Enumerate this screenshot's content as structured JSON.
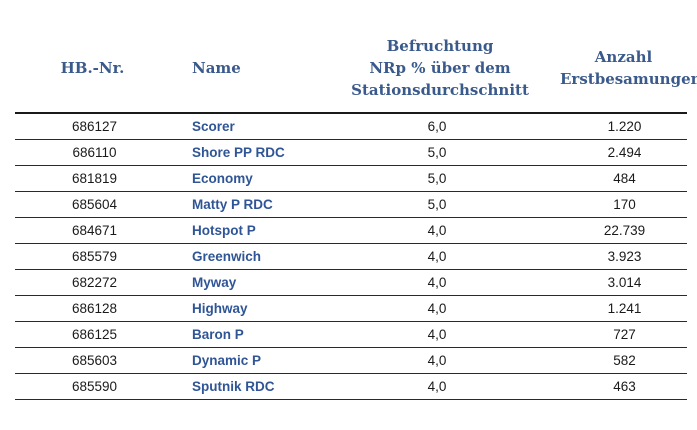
{
  "headers": {
    "nr": "HB.-Nr.",
    "name": "Name",
    "befruchtung": [
      "Befruchtung",
      "NRp % über dem",
      "Stationsdurchschnitt"
    ],
    "anzahl": [
      "Anzahl",
      "Erstbesamungen"
    ]
  },
  "rows": [
    {
      "nr": "686127",
      "name": "Scorer",
      "befruchtung": "6,0",
      "anzahl": "1.220"
    },
    {
      "nr": "686110",
      "name": "Shore PP RDC",
      "befruchtung": "5,0",
      "anzahl": "2.494"
    },
    {
      "nr": "681819",
      "name": "Economy",
      "befruchtung": "5,0",
      "anzahl": "484"
    },
    {
      "nr": "685604",
      "name": "Matty P RDC",
      "befruchtung": "5,0",
      "anzahl": "170"
    },
    {
      "nr": "684671",
      "name": "Hotspot P",
      "befruchtung": "4,0",
      "anzahl": "22.739"
    },
    {
      "nr": "685579",
      "name": "Greenwich",
      "befruchtung": "4,0",
      "anzahl": "3.923"
    },
    {
      "nr": "682272",
      "name": "Myway",
      "befruchtung": "4,0",
      "anzahl": "3.014"
    },
    {
      "nr": "686128",
      "name": "Highway",
      "befruchtung": "4,0",
      "anzahl": "1.241"
    },
    {
      "nr": "686125",
      "name": "Baron P",
      "befruchtung": "4,0",
      "anzahl": "727"
    },
    {
      "nr": "685603",
      "name": "Dynamic P",
      "befruchtung": "4,0",
      "anzahl": "582"
    },
    {
      "nr": "685590",
      "name": "Sputnik RDC",
      "befruchtung": "4,0",
      "anzahl": "463"
    }
  ]
}
